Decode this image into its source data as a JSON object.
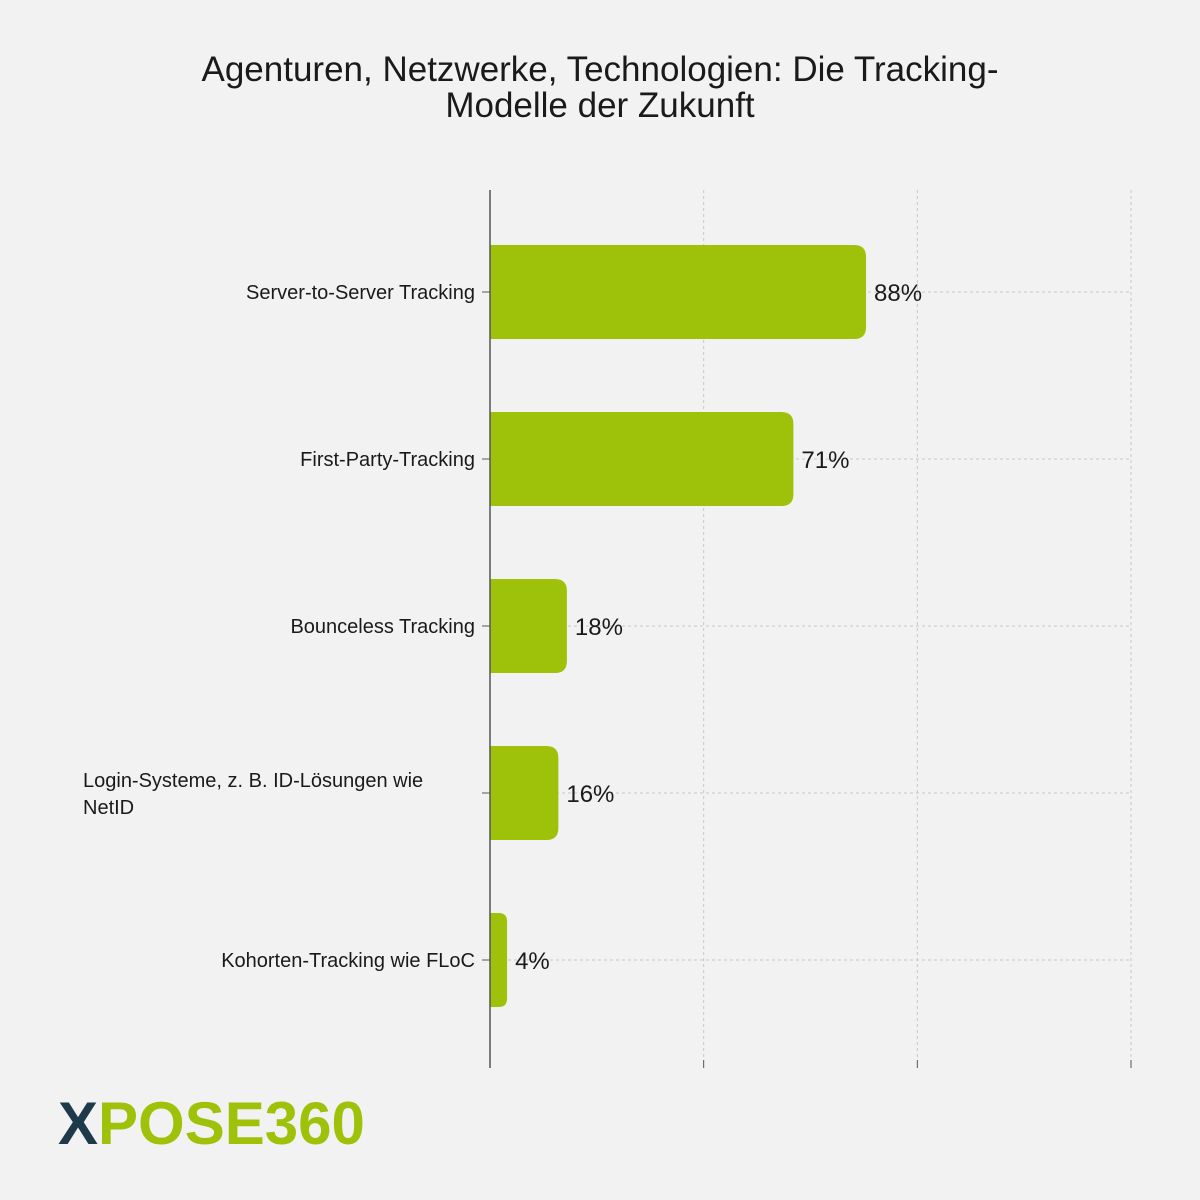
{
  "chart_data": {
    "type": "bar",
    "orientation": "horizontal",
    "title": "Agenturen, Netzwerke, Technologien: Die Tracking-\nModelle der Zukunft",
    "categories": [
      "Server-to-Server Tracking",
      "First-Party-Tracking",
      "Bounceless Tracking",
      "Login-Systeme, z. B. ID-Lösungen wie NetID",
      "Kohorten-Tracking wie FLoC"
    ],
    "category_label_lines": [
      [
        "Server-to-Server Tracking"
      ],
      [
        "First-Party-Tracking"
      ],
      [
        "Bounceless Tracking"
      ],
      [
        "Login-Systeme, z. B. ID-Lösungen wie",
        "NetID"
      ],
      [
        "Kohorten-Tracking wie FLoC"
      ]
    ],
    "values": [
      88,
      71,
      18,
      16,
      4
    ],
    "data_labels": [
      "88%",
      "71%",
      "18%",
      "16%",
      "4%"
    ],
    "xlim": [
      0,
      150
    ],
    "grid": true,
    "bar_color": "#9dc209"
  },
  "logo": {
    "text": "XPOSE360",
    "x_color": "#1e3a4a",
    "rest_color": "#9dc209"
  }
}
